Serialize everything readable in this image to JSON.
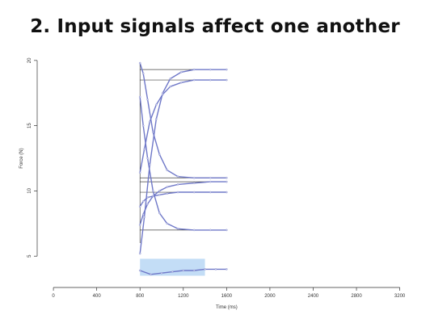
{
  "slide": {
    "title": "2. Input signals affect one another"
  },
  "chart_data": {
    "type": "line",
    "xlabel": "Time (ms)",
    "ylabel": "Force (N)",
    "xlim": [
      -150,
      3300
    ],
    "ylim": [
      2.6,
      20.3
    ],
    "xticks": [
      0,
      400,
      800,
      1200,
      1600,
      2000,
      2400,
      2800,
      3200
    ],
    "yticks": [
      5,
      10,
      15,
      20
    ],
    "grid": false,
    "legend": "none",
    "colors": {
      "trace": "#6f78c8",
      "target_line": "#444444",
      "highlight": "#b8d7f5",
      "axis": "#333333"
    },
    "target_levels": [
      19.3,
      18.5,
      11.0,
      10.7,
      9.9,
      7.0
    ],
    "highlight_region": {
      "x": [
        800,
        1400
      ],
      "y": [
        3.5,
        4.8
      ]
    },
    "series": [
      {
        "x": [
          800,
          830,
          870,
          920,
          980,
          1050,
          1150,
          1300,
          1450,
          1600
        ],
        "values": [
          19.8,
          19.0,
          17.0,
          14.5,
          12.8,
          11.6,
          11.1,
          11.0,
          11.0,
          11.0
        ]
      },
      {
        "x": [
          800,
          840,
          890,
          950,
          1010,
          1080,
          1180,
          1300,
          1450,
          1600
        ],
        "values": [
          5.2,
          8.0,
          12.0,
          15.5,
          17.5,
          18.6,
          19.1,
          19.3,
          19.3,
          19.3
        ]
      },
      {
        "x": [
          800,
          840,
          890,
          950,
          1010,
          1080,
          1180,
          1300,
          1450,
          1600
        ],
        "values": [
          11.4,
          13.2,
          15.3,
          16.6,
          17.4,
          18.0,
          18.3,
          18.5,
          18.5,
          18.5
        ]
      },
      {
        "x": [
          800,
          830,
          870,
          920,
          980,
          1050,
          1150,
          1300,
          1450,
          1600
        ],
        "values": [
          17.2,
          15.0,
          12.5,
          10.0,
          8.3,
          7.5,
          7.1,
          7.0,
          7.0,
          7.0
        ]
      },
      {
        "x": [
          800,
          830,
          870,
          920,
          980,
          1050,
          1150,
          1300,
          1450,
          1600
        ],
        "values": [
          7.4,
          8.2,
          9.0,
          9.6,
          10.0,
          10.3,
          10.5,
          10.6,
          10.7,
          10.7
        ]
      },
      {
        "x": [
          800,
          830,
          870,
          920,
          980,
          1050,
          1150,
          1300,
          1450,
          1600
        ],
        "values": [
          8.8,
          9.2,
          9.5,
          9.6,
          9.7,
          9.8,
          9.9,
          9.9,
          9.9,
          9.9
        ]
      },
      {
        "x": [
          800,
          900,
          1000,
          1100,
          1200,
          1300,
          1400,
          1500,
          1600
        ],
        "values": [
          3.9,
          3.6,
          3.7,
          3.8,
          3.9,
          3.9,
          4.0,
          4.0,
          4.0
        ]
      }
    ]
  }
}
